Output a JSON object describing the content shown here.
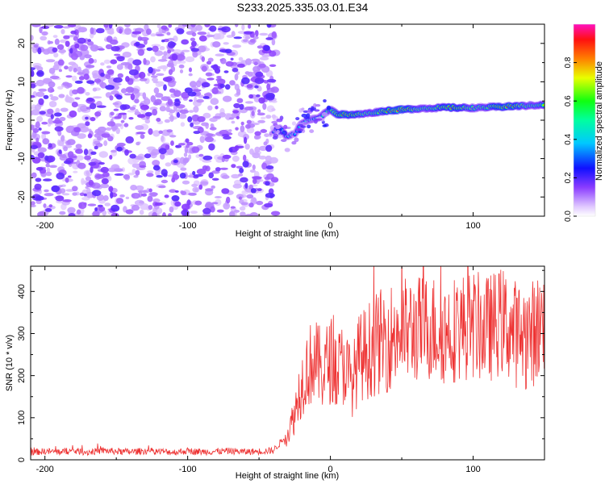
{
  "title": "S233.2025.335.03.01.E34",
  "chart_data": [
    {
      "type": "heatmap",
      "title": "",
      "xlabel": "Height of straight line (km)",
      "ylabel": "Frequency (Hz)",
      "xlim": [
        -210,
        150
      ],
      "ylim": [
        -25,
        25
      ],
      "x_ticks": [
        "-200",
        "-100",
        "0",
        "100"
      ],
      "x_tick_values": [
        -200,
        -100,
        0,
        100
      ],
      "y_ticks": [
        "-20",
        "-10",
        "0",
        "10",
        "20"
      ],
      "y_tick_values": [
        -20,
        -10,
        0,
        10,
        20
      ],
      "noise_region_x": [
        -210,
        -37
      ],
      "ridge": {
        "x": [
          -40,
          -35,
          -30,
          -25,
          -20,
          -15,
          -10,
          -5,
          0,
          5,
          10,
          20,
          40,
          60,
          80,
          100,
          120,
          150
        ],
        "y": [
          -3,
          -2,
          -4.5,
          -3.5,
          -0.5,
          0,
          0.5,
          1.5,
          2.8,
          1.5,
          1.5,
          1.5,
          2.5,
          3,
          3.3,
          3.2,
          3.5,
          4
        ],
        "amplitude": [
          0.4,
          0.5,
          0.5,
          0.4,
          0.55,
          0.6,
          0.7,
          0.8,
          0.75,
          0.85,
          0.9,
          0.95,
          1.0,
          0.95,
          0.9,
          0.9,
          0.95,
          0.9
        ]
      },
      "colorbar": {
        "label": "Normalized spectral amplitude",
        "range": [
          0,
          1
        ],
        "ticks": [
          "0.0",
          "0.2",
          "0.4",
          "0.6",
          "0.8"
        ],
        "tick_values": [
          0,
          0.2,
          0.4,
          0.6,
          0.8
        ]
      }
    },
    {
      "type": "line",
      "title": "",
      "xlabel": "Height of straight line (km)",
      "ylabel": "SNR (10 * v/v)",
      "xlim": [
        -210,
        150
      ],
      "ylim": [
        0,
        460
      ],
      "x_ticks": [
        "-200",
        "-100",
        "0",
        "100"
      ],
      "x_tick_values": [
        -200,
        -100,
        0,
        100
      ],
      "y_ticks": [
        "0",
        "100",
        "200",
        "300",
        "400"
      ],
      "y_tick_values": [
        0,
        100,
        200,
        300,
        400
      ],
      "color": "#ee3333",
      "series": [
        {
          "name": "SNR",
          "x": [
            -210,
            -200,
            -190,
            -180,
            -170,
            -160,
            -150,
            -140,
            -130,
            -120,
            -110,
            -100,
            -90,
            -80,
            -70,
            -60,
            -50,
            -40,
            -30,
            -25,
            -22,
            -20,
            -18,
            -15,
            -12,
            -10,
            -5,
            0,
            5,
            10,
            15,
            20,
            30,
            40,
            50,
            60,
            70,
            80,
            90,
            100,
            110,
            120,
            130,
            140,
            150
          ],
          "values": [
            18,
            20,
            19,
            21,
            18,
            22,
            20,
            19,
            21,
            20,
            18,
            21,
            19,
            20,
            21,
            19,
            20,
            22,
            60,
            110,
            160,
            180,
            210,
            220,
            240,
            230,
            210,
            240,
            215,
            230,
            180,
            240,
            270,
            290,
            305,
            310,
            315,
            305,
            315,
            320,
            310,
            330,
            300,
            295,
            330
          ]
        }
      ]
    }
  ]
}
